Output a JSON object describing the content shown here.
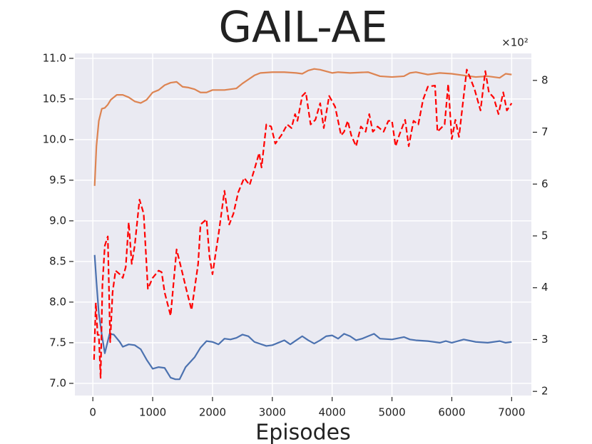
{
  "chart_data": {
    "type": "line",
    "title": "GAIL-AE",
    "x_label": "Episodes",
    "y2_multiplier": "×10²",
    "xlim": [
      -300,
      7330
    ],
    "xticks": [
      0,
      1000,
      2000,
      3000,
      4000,
      5000,
      6000,
      7000
    ],
    "ylim": [
      6.85,
      11.06
    ],
    "yticks": [
      {
        "value": 7.0,
        "label": "7.0"
      },
      7.5,
      {
        "value": 8.0,
        "label": "8.0"
      },
      8.5,
      {
        "value": 9.0,
        "label": "9.0"
      },
      9.5,
      {
        "value": 10.0,
        "label": "10.0"
      },
      10.5,
      {
        "value": 11.0,
        "label": "11.0"
      }
    ],
    "y2lim": [
      1.92,
      8.52
    ],
    "y2ticks": [
      2,
      3,
      4,
      5,
      6,
      7,
      8
    ],
    "grid": true,
    "background": "#eaeaf2",
    "series": [
      {
        "color": "#4c72b0",
        "dashed": false,
        "x": [
          30,
          60,
          100,
          150,
          200,
          280,
          350,
          450,
          500,
          600,
          700,
          800,
          900,
          1000,
          1100,
          1200,
          1300,
          1380,
          1450,
          1550,
          1700,
          1800,
          1900,
          2000,
          2100,
          2200,
          2300,
          2400,
          2500,
          2600,
          2700,
          2900,
          3000,
          3200,
          3300,
          3400,
          3500,
          3600,
          3700,
          3800,
          3900,
          4000,
          4100,
          4200,
          4300,
          4400,
          4500,
          4600,
          4700,
          4800,
          5000,
          5200,
          5300,
          5400,
          5600,
          5800,
          5900,
          6000,
          6200,
          6400,
          6600,
          6700,
          6800,
          6900,
          7000
        ],
        "values": [
          8.58,
          8.25,
          7.86,
          7.6,
          7.37,
          7.61,
          7.6,
          7.51,
          7.45,
          7.48,
          7.47,
          7.42,
          7.29,
          7.18,
          7.2,
          7.19,
          7.07,
          7.05,
          7.05,
          7.2,
          7.32,
          7.44,
          7.52,
          7.51,
          7.48,
          7.55,
          7.54,
          7.56,
          7.6,
          7.58,
          7.51,
          7.46,
          7.47,
          7.53,
          7.48,
          7.53,
          7.58,
          7.53,
          7.49,
          7.53,
          7.58,
          7.59,
          7.55,
          7.61,
          7.58,
          7.53,
          7.55,
          7.58,
          7.61,
          7.55,
          7.54,
          7.57,
          7.54,
          7.53,
          7.52,
          7.5,
          7.52,
          7.5,
          7.54,
          7.51,
          7.5,
          7.51,
          7.52,
          7.5,
          7.51
        ]
      },
      {
        "color": "#dd8452",
        "dashed": false,
        "x": [
          30,
          60,
          100,
          150,
          200,
          250,
          300,
          400,
          500,
          600,
          700,
          800,
          900,
          1000,
          1100,
          1200,
          1300,
          1400,
          1500,
          1600,
          1700,
          1800,
          1900,
          2000,
          2200,
          2400,
          2500,
          2600,
          2700,
          2800,
          3000,
          3200,
          3400,
          3500,
          3600,
          3700,
          3800,
          4000,
          4100,
          4300,
          4600,
          4800,
          5000,
          5200,
          5300,
          5400,
          5600,
          5800,
          6000,
          6200,
          6400,
          6600,
          6800,
          6900,
          7000
        ],
        "values": [
          9.43,
          9.92,
          10.23,
          10.38,
          10.39,
          10.43,
          10.49,
          10.55,
          10.55,
          10.52,
          10.47,
          10.45,
          10.49,
          10.58,
          10.61,
          10.67,
          10.7,
          10.71,
          10.65,
          10.64,
          10.62,
          10.58,
          10.58,
          10.61,
          10.61,
          10.63,
          10.69,
          10.74,
          10.79,
          10.82,
          10.83,
          10.83,
          10.82,
          10.81,
          10.85,
          10.87,
          10.86,
          10.82,
          10.83,
          10.82,
          10.83,
          10.78,
          10.77,
          10.78,
          10.82,
          10.83,
          10.8,
          10.82,
          10.81,
          10.79,
          10.77,
          10.78,
          10.76,
          10.81,
          10.8
        ]
      },
      {
        "color": "#ff0000",
        "dashed": true,
        "axis": "y2",
        "x": [
          20,
          50,
          80,
          100,
          130,
          160,
          200,
          250,
          290,
          330,
          380,
          450,
          500,
          550,
          600,
          650,
          700,
          780,
          850,
          920,
          1000,
          1100,
          1150,
          1200,
          1300,
          1400,
          1500,
          1560,
          1650,
          1760,
          1800,
          1900,
          1950,
          2000,
          2100,
          2200,
          2280,
          2350,
          2430,
          2530,
          2620,
          2700,
          2780,
          2820,
          2900,
          2980,
          3050,
          3150,
          3250,
          3320,
          3380,
          3420,
          3500,
          3560,
          3640,
          3720,
          3800,
          3860,
          3950,
          4050,
          4150,
          4200,
          4260,
          4320,
          4400,
          4480,
          4560,
          4620,
          4680,
          4760,
          4860,
          4940,
          5000,
          5060,
          5120,
          5220,
          5280,
          5360,
          5440,
          5520,
          5600,
          5720,
          5760,
          5880,
          5940,
          6000,
          6060,
          6120,
          6250,
          6300,
          6380,
          6480,
          6560,
          6620,
          6700,
          6780,
          6860,
          6920,
          7000
        ],
        "values": [
          2.61,
          3.71,
          3.09,
          3.09,
          2.26,
          4.05,
          4.81,
          4.99,
          2.95,
          3.91,
          4.33,
          4.26,
          4.19,
          4.4,
          5.26,
          4.46,
          4.81,
          5.7,
          5.43,
          3.98,
          4.19,
          4.33,
          4.3,
          3.91,
          3.46,
          4.74,
          4.27,
          3.98,
          3.57,
          4.46,
          5.22,
          5.32,
          4.6,
          4.26,
          5.02,
          5.87,
          5.22,
          5.43,
          5.84,
          6.12,
          5.98,
          6.28,
          6.6,
          6.32,
          7.15,
          7.11,
          6.78,
          6.94,
          7.15,
          7.08,
          7.35,
          7.22,
          7.7,
          7.77,
          7.15,
          7.24,
          7.56,
          7.08,
          7.7,
          7.49,
          6.94,
          7.01,
          7.22,
          6.94,
          6.73,
          7.11,
          7.01,
          7.35,
          7.01,
          7.11,
          7.01,
          7.22,
          7.22,
          6.73,
          6.94,
          7.24,
          6.73,
          7.22,
          7.15,
          7.63,
          7.88,
          7.9,
          7.01,
          7.15,
          7.93,
          6.87,
          7.24,
          6.91,
          8.21,
          8.07,
          7.83,
          7.42,
          8.18,
          7.77,
          7.67,
          7.35,
          7.77,
          7.42,
          7.56
        ]
      }
    ]
  }
}
